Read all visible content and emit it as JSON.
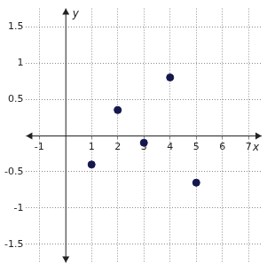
{
  "chart_data": {
    "type": "scatter",
    "x_label": "x",
    "y_label": "y",
    "x": [
      1,
      2,
      3,
      4,
      5
    ],
    "values": [
      -0.4,
      0.35,
      -0.1,
      0.8,
      -0.65
    ],
    "color": "#15174f",
    "marker": "circle",
    "xlim": [
      -1.5,
      7.5
    ],
    "ylim": [
      -1.75,
      1.75
    ],
    "xticks": [
      -1,
      1,
      2,
      3,
      4,
      5,
      6,
      7
    ],
    "yticks": [
      -1.5,
      -1,
      -0.5,
      0.5,
      1,
      1.5
    ],
    "grid": true
  }
}
